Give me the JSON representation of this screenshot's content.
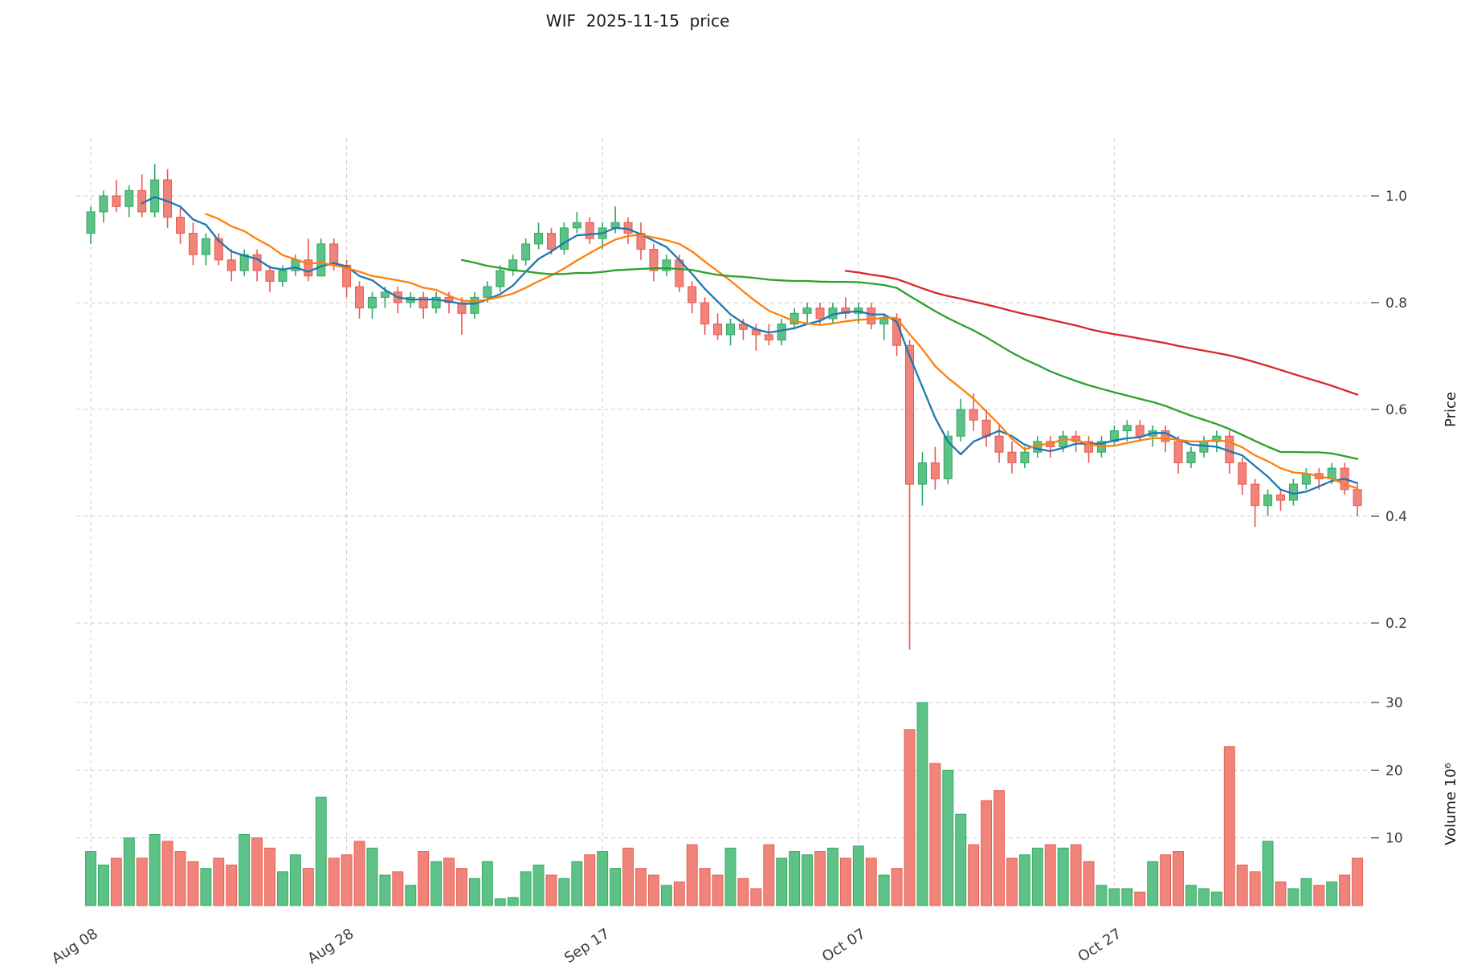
{
  "title": "WIF  2025-11-15  price",
  "axes": {
    "price_label": "Price",
    "volume_label": "Volume  10⁶",
    "price_ticks": [
      0.2,
      0.4,
      0.6,
      0.8,
      1.0
    ],
    "volume_ticks": [
      10,
      20,
      30
    ],
    "x_ticks": [
      {
        "label": "Aug 08",
        "i": 0
      },
      {
        "label": "Aug 28",
        "i": 20
      },
      {
        "label": "Sep 17",
        "i": 40
      },
      {
        "label": "Oct 07",
        "i": 60
      },
      {
        "label": "Oct 27",
        "i": 80
      }
    ]
  },
  "chart_data": {
    "type": "candlestick",
    "symbol": "WIF",
    "as_of_date": "2025-11-15",
    "num_candles": 100,
    "price_range": [
      0.13,
      1.08
    ],
    "volume_range_millions": [
      0,
      31
    ],
    "grid": true,
    "colors": {
      "up": "#5ec186",
      "up_edge": "#2fa862",
      "down": "#f0837a",
      "down_edge": "#e65a50",
      "grid": "#cccccc",
      "text": "#3b3b3b",
      "title_text": "#1a1a1a"
    },
    "moving_averages": [
      {
        "name": "MA5",
        "window": 5,
        "color": "#1f77b4"
      },
      {
        "name": "MA10",
        "window": 10,
        "color": "#ff7f0e"
      },
      {
        "name": "MA30",
        "window": 30,
        "color": "#2ca02c"
      },
      {
        "name": "MA60",
        "window": 60,
        "color": "#d62728"
      }
    ],
    "ohlc": [
      [
        0.93,
        0.98,
        0.91,
        0.97
      ],
      [
        0.97,
        1.01,
        0.95,
        1.0
      ],
      [
        1.0,
        1.03,
        0.97,
        0.98
      ],
      [
        0.98,
        1.02,
        0.96,
        1.01
      ],
      [
        1.01,
        1.04,
        0.96,
        0.97
      ],
      [
        0.97,
        1.06,
        0.96,
        1.03
      ],
      [
        1.03,
        1.05,
        0.94,
        0.96
      ],
      [
        0.96,
        0.98,
        0.91,
        0.93
      ],
      [
        0.93,
        0.95,
        0.87,
        0.89
      ],
      [
        0.89,
        0.93,
        0.87,
        0.92
      ],
      [
        0.92,
        0.93,
        0.87,
        0.88
      ],
      [
        0.88,
        0.9,
        0.84,
        0.86
      ],
      [
        0.86,
        0.9,
        0.85,
        0.89
      ],
      [
        0.89,
        0.9,
        0.84,
        0.86
      ],
      [
        0.86,
        0.87,
        0.82,
        0.84
      ],
      [
        0.84,
        0.87,
        0.83,
        0.86
      ],
      [
        0.86,
        0.89,
        0.85,
        0.88
      ],
      [
        0.88,
        0.92,
        0.84,
        0.85
      ],
      [
        0.85,
        0.92,
        0.85,
        0.91
      ],
      [
        0.91,
        0.92,
        0.86,
        0.87
      ],
      [
        0.87,
        0.88,
        0.81,
        0.83
      ],
      [
        0.83,
        0.84,
        0.77,
        0.79
      ],
      [
        0.79,
        0.82,
        0.77,
        0.81
      ],
      [
        0.81,
        0.83,
        0.79,
        0.82
      ],
      [
        0.82,
        0.83,
        0.78,
        0.8
      ],
      [
        0.8,
        0.82,
        0.79,
        0.81
      ],
      [
        0.81,
        0.82,
        0.77,
        0.79
      ],
      [
        0.79,
        0.82,
        0.78,
        0.81
      ],
      [
        0.81,
        0.82,
        0.78,
        0.8
      ],
      [
        0.8,
        0.81,
        0.74,
        0.78
      ],
      [
        0.78,
        0.82,
        0.77,
        0.81
      ],
      [
        0.81,
        0.84,
        0.8,
        0.83
      ],
      [
        0.83,
        0.87,
        0.82,
        0.86
      ],
      [
        0.86,
        0.89,
        0.85,
        0.88
      ],
      [
        0.88,
        0.92,
        0.87,
        0.91
      ],
      [
        0.91,
        0.95,
        0.9,
        0.93
      ],
      [
        0.93,
        0.94,
        0.89,
        0.9
      ],
      [
        0.9,
        0.95,
        0.89,
        0.94
      ],
      [
        0.94,
        0.97,
        0.93,
        0.95
      ],
      [
        0.95,
        0.96,
        0.91,
        0.92
      ],
      [
        0.92,
        0.95,
        0.9,
        0.94
      ],
      [
        0.94,
        0.98,
        0.93,
        0.95
      ],
      [
        0.95,
        0.96,
        0.91,
        0.93
      ],
      [
        0.93,
        0.95,
        0.88,
        0.9
      ],
      [
        0.9,
        0.91,
        0.84,
        0.86
      ],
      [
        0.86,
        0.89,
        0.85,
        0.88
      ],
      [
        0.88,
        0.89,
        0.82,
        0.83
      ],
      [
        0.83,
        0.84,
        0.78,
        0.8
      ],
      [
        0.8,
        0.81,
        0.74,
        0.76
      ],
      [
        0.76,
        0.78,
        0.73,
        0.74
      ],
      [
        0.74,
        0.77,
        0.72,
        0.76
      ],
      [
        0.76,
        0.77,
        0.73,
        0.75
      ],
      [
        0.75,
        0.76,
        0.71,
        0.74
      ],
      [
        0.74,
        0.76,
        0.72,
        0.73
      ],
      [
        0.73,
        0.77,
        0.72,
        0.76
      ],
      [
        0.76,
        0.79,
        0.75,
        0.78
      ],
      [
        0.78,
        0.8,
        0.76,
        0.79
      ],
      [
        0.79,
        0.8,
        0.76,
        0.77
      ],
      [
        0.77,
        0.8,
        0.76,
        0.79
      ],
      [
        0.79,
        0.81,
        0.77,
        0.78
      ],
      [
        0.78,
        0.8,
        0.76,
        0.79
      ],
      [
        0.79,
        0.8,
        0.75,
        0.76
      ],
      [
        0.76,
        0.78,
        0.73,
        0.77
      ],
      [
        0.77,
        0.78,
        0.7,
        0.72
      ],
      [
        0.72,
        0.73,
        0.15,
        0.46
      ],
      [
        0.46,
        0.52,
        0.42,
        0.5
      ],
      [
        0.5,
        0.53,
        0.45,
        0.47
      ],
      [
        0.47,
        0.56,
        0.46,
        0.55
      ],
      [
        0.55,
        0.62,
        0.54,
        0.6
      ],
      [
        0.6,
        0.63,
        0.56,
        0.58
      ],
      [
        0.58,
        0.6,
        0.53,
        0.55
      ],
      [
        0.55,
        0.57,
        0.5,
        0.52
      ],
      [
        0.52,
        0.54,
        0.48,
        0.5
      ],
      [
        0.5,
        0.53,
        0.49,
        0.52
      ],
      [
        0.52,
        0.55,
        0.51,
        0.54
      ],
      [
        0.54,
        0.55,
        0.51,
        0.53
      ],
      [
        0.53,
        0.56,
        0.52,
        0.55
      ],
      [
        0.55,
        0.56,
        0.52,
        0.54
      ],
      [
        0.54,
        0.55,
        0.5,
        0.52
      ],
      [
        0.52,
        0.55,
        0.51,
        0.54
      ],
      [
        0.54,
        0.57,
        0.53,
        0.56
      ],
      [
        0.56,
        0.58,
        0.54,
        0.57
      ],
      [
        0.57,
        0.58,
        0.54,
        0.55
      ],
      [
        0.55,
        0.57,
        0.53,
        0.56
      ],
      [
        0.56,
        0.57,
        0.52,
        0.54
      ],
      [
        0.54,
        0.55,
        0.48,
        0.5
      ],
      [
        0.5,
        0.53,
        0.49,
        0.52
      ],
      [
        0.52,
        0.55,
        0.51,
        0.54
      ],
      [
        0.54,
        0.56,
        0.52,
        0.55
      ],
      [
        0.55,
        0.56,
        0.48,
        0.5
      ],
      [
        0.5,
        0.51,
        0.44,
        0.46
      ],
      [
        0.46,
        0.47,
        0.38,
        0.42
      ],
      [
        0.42,
        0.45,
        0.4,
        0.44
      ],
      [
        0.44,
        0.45,
        0.41,
        0.43
      ],
      [
        0.43,
        0.47,
        0.42,
        0.46
      ],
      [
        0.46,
        0.49,
        0.45,
        0.48
      ],
      [
        0.48,
        0.49,
        0.45,
        0.47
      ],
      [
        0.47,
        0.5,
        0.46,
        0.49
      ],
      [
        0.49,
        0.5,
        0.44,
        0.45
      ],
      [
        0.45,
        0.46,
        0.4,
        0.42
      ]
    ],
    "volume_millions": [
      8,
      6,
      7,
      10,
      7,
      10.5,
      9.5,
      8,
      6.5,
      5.5,
      7,
      6,
      10.5,
      10,
      8.5,
      5,
      7.5,
      5.5,
      16,
      7,
      7.5,
      9.5,
      8.5,
      4.5,
      5,
      3,
      8,
      6.5,
      7,
      5.5,
      4,
      6.5,
      1,
      1.2,
      5,
      6,
      4.5,
      4,
      6.5,
      7.5,
      8,
      5.5,
      8.5,
      5.5,
      4.5,
      3,
      3.5,
      9,
      5.5,
      4.5,
      8.5,
      4,
      2.5,
      9,
      7,
      8,
      7.5,
      8,
      8.5,
      7,
      8.8,
      7,
      4.5,
      5.5,
      26,
      30,
      21,
      20,
      13.5,
      9,
      15.5,
      17,
      7,
      7.5,
      8.5,
      9,
      8.5,
      9,
      6.5,
      3,
      2.5,
      2.5,
      2,
      6.5,
      7.5,
      8,
      3,
      2.5,
      2,
      23.5,
      6,
      5,
      9.5,
      3.5,
      2.5,
      4,
      3,
      3.5,
      4.5,
      7
    ]
  }
}
